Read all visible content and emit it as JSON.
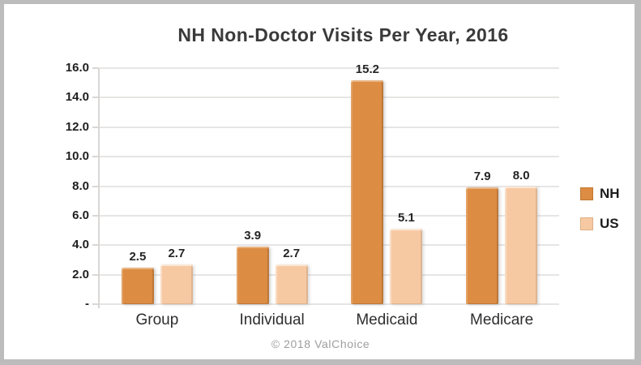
{
  "card": {
    "background": "#ffffff",
    "border_color": "#bcbcbc"
  },
  "header": {
    "title": "NH Non-Doctor Visits Per Year, 2016"
  },
  "footer": {
    "text": "© 2018 ValChoice"
  },
  "legend": {
    "position": "right",
    "items": [
      {
        "label": "NH",
        "color": "#dc8c43",
        "border": "#c1772f"
      },
      {
        "label": "US",
        "color": "#f7c9a3",
        "border": "#ddb084"
      }
    ]
  },
  "chart_data": {
    "type": "bar",
    "title": "NH Non-Doctor Visits Per Year, 2016",
    "categories": [
      "Group",
      "Individual",
      "Medicaid",
      "Medicare"
    ],
    "series": [
      {
        "name": "NH",
        "color": "#dc8c43",
        "values": [
          2.5,
          3.9,
          15.2,
          7.9
        ],
        "labels": [
          "2.5",
          "3.9",
          "15.2",
          "7.9"
        ]
      },
      {
        "name": "US",
        "color": "#f7c9a3",
        "values": [
          2.7,
          2.7,
          5.1,
          8.0
        ],
        "labels": [
          "2.7",
          "2.7",
          "5.1",
          "8.0"
        ]
      }
    ],
    "xlabel": "",
    "ylabel": "",
    "ylim": [
      0,
      16
    ],
    "ytick_step": 2,
    "ytick_labels_top_to_bottom": [
      "16.0",
      "14.0",
      "12.0",
      "10.0",
      "8.0",
      "6.0",
      "4.0",
      "2.0",
      "-"
    ],
    "grid": true,
    "legend_position": "right"
  }
}
